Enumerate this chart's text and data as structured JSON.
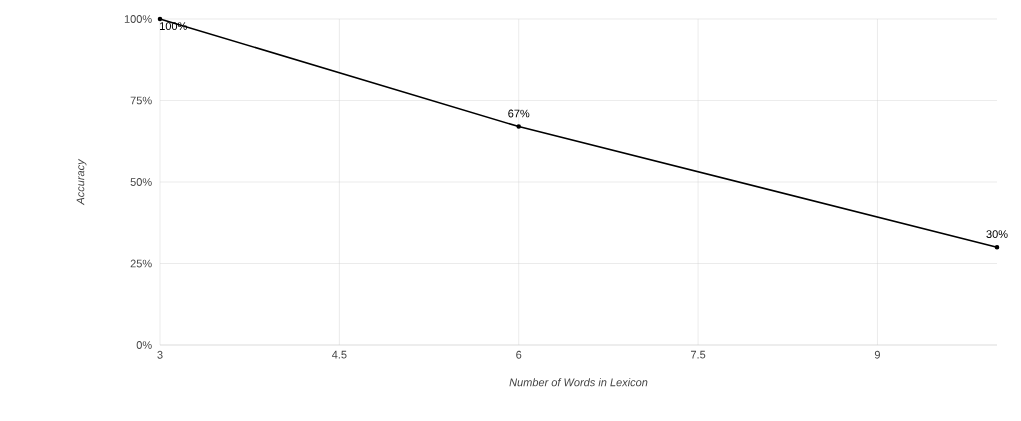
{
  "chart_data": {
    "type": "line",
    "xlabel": "Number of Words in Lexicon",
    "ylabel": "Accuracy",
    "x": [
      3,
      6,
      10
    ],
    "series": [
      {
        "color": "#000000",
        "values": [
          100,
          67,
          30
        ],
        "value_labels": [
          "100%",
          "67%",
          "30%"
        ]
      }
    ],
    "xlim": [
      3,
      10
    ],
    "xticks": [
      3,
      4.5,
      6,
      7.5,
      9
    ],
    "ylim": [
      0,
      100
    ],
    "yticks": [
      {
        "value": 0,
        "label": "0%"
      },
      {
        "value": 25,
        "label": "25%"
      },
      {
        "value": 50,
        "label": "50%"
      },
      {
        "value": 75,
        "label": "75%"
      },
      {
        "value": 100,
        "label": "100%"
      }
    ],
    "grid": true,
    "marker": "circle",
    "line_style": "solid"
  }
}
